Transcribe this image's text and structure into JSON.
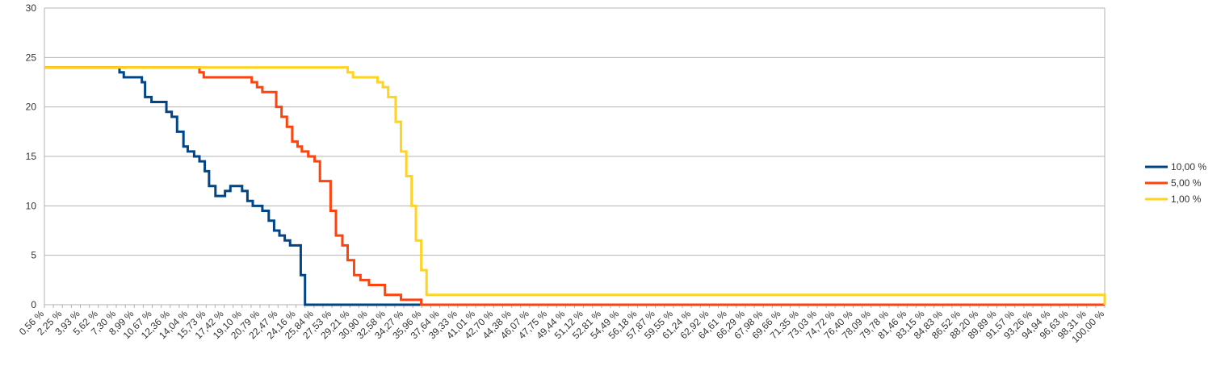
{
  "chart_data": {
    "type": "line",
    "step": true,
    "grid": true,
    "legend_position": "right",
    "ylim": [
      0,
      30
    ],
    "yticks": [
      0,
      5,
      10,
      15,
      20,
      25,
      30
    ],
    "xlim": [
      0.56,
      100.0
    ],
    "x_tick_labels": [
      "0,56 %",
      "2,25 %",
      "3,93 %",
      "5,62 %",
      "7,30 %",
      "8,99 %",
      "10,67 %",
      "12,36 %",
      "14,04 %",
      "15,73 %",
      "17,42 %",
      "19,10 %",
      "20,79 %",
      "22,47 %",
      "24,16 %",
      "25,84 %",
      "27,53 %",
      "29,21 %",
      "30,90 %",
      "32,58 %",
      "34,27 %",
      "35,96 %",
      "37,64 %",
      "39,33 %",
      "41,01 %",
      "42,70 %",
      "44,38 %",
      "46,07 %",
      "47,75 %",
      "49,44 %",
      "51,12 %",
      "52,81 %",
      "54,49 %",
      "56,18 %",
      "57,87 %",
      "59,55 %",
      "61,24 %",
      "62,92 %",
      "64,61 %",
      "66,29 %",
      "67,98 %",
      "69,66 %",
      "71,35 %",
      "73,03 %",
      "74,72 %",
      "76,40 %",
      "78,09 %",
      "79,78 %",
      "81,46 %",
      "83,15 %",
      "84,83 %",
      "86,52 %",
      "88,20 %",
      "89,89 %",
      "91,57 %",
      "93,26 %",
      "94,94 %",
      "96,63 %",
      "98,31 %",
      "100,00 %"
    ],
    "series": [
      {
        "name": "10,00 %",
        "color": "#004586",
        "x": [
          0.56,
          7.6,
          8.0,
          8.5,
          9.7,
          10.0,
          10.6,
          11.0,
          12.0,
          12.5,
          13.0,
          13.6,
          14.0,
          14.6,
          15.1,
          15.6,
          16.0,
          16.6,
          17.5,
          18.0,
          18.6,
          19.1,
          19.6,
          20.1,
          21.0,
          21.6,
          22.1,
          22.6,
          23.1,
          23.6,
          24.6,
          25.0,
          25.5,
          100.0
        ],
        "y": [
          24.0,
          23.5,
          23.0,
          23.0,
          22.5,
          21.0,
          20.5,
          20.5,
          19.5,
          19.0,
          17.5,
          16.0,
          15.5,
          15.0,
          14.5,
          13.5,
          12.0,
          11.0,
          11.5,
          12.0,
          12.0,
          11.5,
          10.5,
          10.0,
          9.5,
          8.5,
          7.5,
          7.0,
          6.5,
          6.0,
          3.0,
          0.0,
          0.0,
          0.0
        ]
      },
      {
        "name": "5,00 %",
        "color": "#ff420e",
        "x": [
          0.56,
          15.1,
          15.5,
          16.0,
          20.0,
          20.5,
          21.0,
          22.3,
          22.8,
          23.3,
          23.8,
          24.3,
          24.7,
          25.3,
          25.9,
          26.4,
          27.4,
          27.9,
          28.5,
          29.0,
          29.6,
          30.2,
          31.0,
          32.5,
          33.0,
          34.0,
          35.9,
          100.0
        ],
        "y": [
          24.0,
          23.5,
          23.0,
          23.0,
          22.5,
          22.0,
          21.5,
          20.0,
          19.0,
          18.0,
          16.5,
          16.0,
          15.5,
          15.0,
          14.5,
          12.5,
          9.5,
          7.0,
          6.0,
          4.5,
          3.0,
          2.5,
          2.0,
          1.0,
          1.0,
          0.5,
          0.0,
          0.0
        ]
      },
      {
        "name": "1,00 %",
        "color": "#ffd320",
        "x": [
          0.56,
          28.5,
          29.0,
          29.5,
          31.2,
          31.8,
          32.3,
          32.8,
          33.5,
          34.0,
          34.5,
          35.0,
          35.4,
          35.9,
          36.4,
          100.0
        ],
        "y": [
          24.0,
          24.0,
          23.5,
          23.0,
          23.0,
          22.5,
          22.0,
          21.0,
          18.5,
          15.5,
          13.0,
          10.0,
          6.5,
          3.5,
          1.0,
          0.0
        ]
      }
    ]
  }
}
